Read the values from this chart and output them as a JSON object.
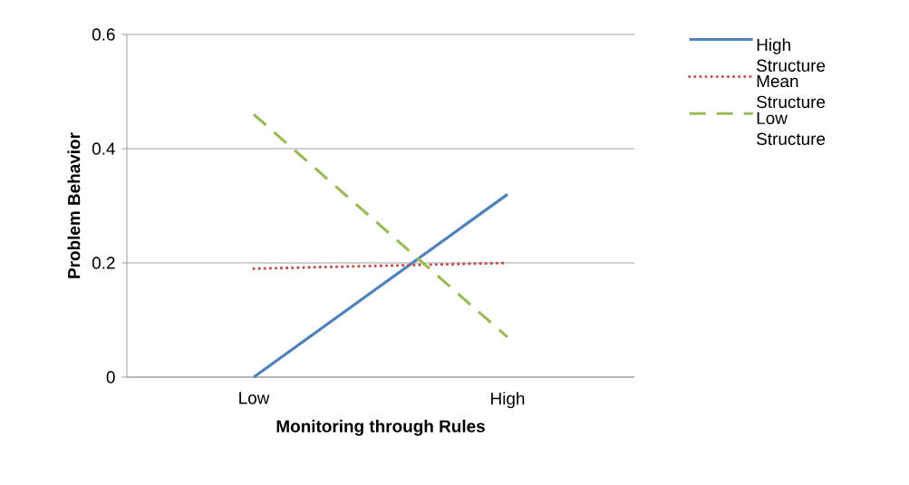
{
  "chart_data": {
    "type": "line",
    "xlabel": "Monitoring through Rules",
    "ylabel": "Problem Behavior",
    "categories": [
      "Low",
      "High"
    ],
    "series": [
      {
        "name": "High Structure",
        "color": "#4f81bd",
        "line_style": "solid",
        "values": [
          0,
          0.32
        ]
      },
      {
        "name": "Mean Structure",
        "color": "#c0504d",
        "line_style": "dotted",
        "values": [
          0.19,
          0.2
        ]
      },
      {
        "name": "Low Structure",
        "color": "#9bbb59",
        "line_style": "dashed",
        "values": [
          0.46,
          0.07
        ]
      }
    ],
    "ylim": [
      0,
      0.6
    ],
    "yticks": [
      0,
      0.2,
      0.4,
      0.6
    ],
    "grid": "y",
    "legend": "right"
  }
}
